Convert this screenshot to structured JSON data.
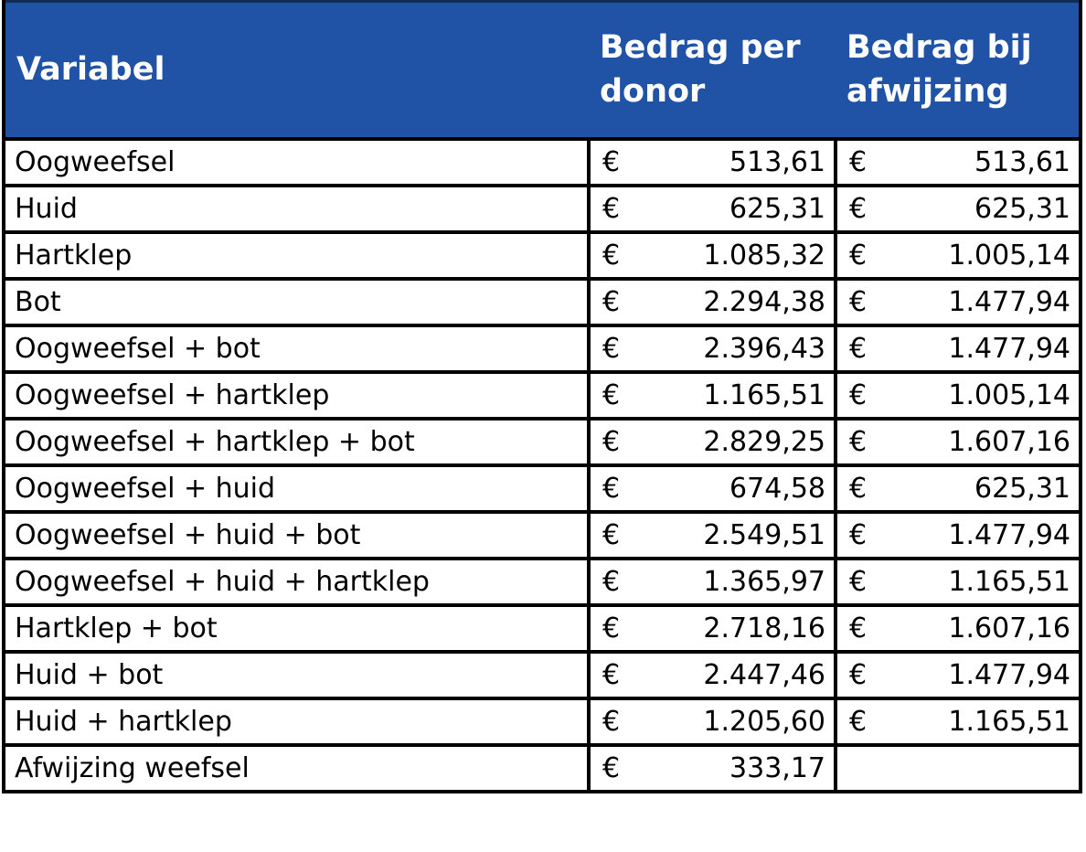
{
  "table": {
    "columns": [
      {
        "label": "Variabel"
      },
      {
        "label": "Bedrag per donor"
      },
      {
        "label": "Bedrag bij afwijzing"
      }
    ],
    "style": {
      "header_bg": "#2052A5",
      "header_text": "#FFFFFF",
      "border_color": "#000000",
      "body_text": "#000000"
    },
    "rows": [
      {
        "variable": "Oogweefsel",
        "per_donor_currency": "€",
        "per_donor": "513,61",
        "afwijzing_currency": "€",
        "afwijzing": "513,61"
      },
      {
        "variable": "Huid",
        "per_donor_currency": "€",
        "per_donor": "625,31",
        "afwijzing_currency": "€",
        "afwijzing": "625,31"
      },
      {
        "variable": "Hartklep",
        "per_donor_currency": "€",
        "per_donor": "1.085,32",
        "afwijzing_currency": "€",
        "afwijzing": "1.005,14"
      },
      {
        "variable": "Bot",
        "per_donor_currency": "€",
        "per_donor": "2.294,38",
        "afwijzing_currency": "€",
        "afwijzing": "1.477,94"
      },
      {
        "variable": "Oogweefsel + bot",
        "per_donor_currency": "€",
        "per_donor": "2.396,43",
        "afwijzing_currency": "€",
        "afwijzing": "1.477,94"
      },
      {
        "variable": "Oogweefsel + hartklep",
        "per_donor_currency": "€",
        "per_donor": "1.165,51",
        "afwijzing_currency": "€",
        "afwijzing": "1.005,14"
      },
      {
        "variable": "Oogweefsel + hartklep + bot",
        "per_donor_currency": "€",
        "per_donor": "2.829,25",
        "afwijzing_currency": "€",
        "afwijzing": "1.607,16"
      },
      {
        "variable": "Oogweefsel + huid",
        "per_donor_currency": "€",
        "per_donor": "674,58",
        "afwijzing_currency": "€",
        "afwijzing": "625,31"
      },
      {
        "variable": "Oogweefsel + huid + bot",
        "per_donor_currency": "€",
        "per_donor": "2.549,51",
        "afwijzing_currency": "€",
        "afwijzing": "1.477,94"
      },
      {
        "variable": "Oogweefsel + huid + hartklep",
        "per_donor_currency": "€",
        "per_donor": "1.365,97",
        "afwijzing_currency": "€",
        "afwijzing": "1.165,51"
      },
      {
        "variable": "Hartklep + bot",
        "per_donor_currency": "€",
        "per_donor": "2.718,16",
        "afwijzing_currency": "€",
        "afwijzing": "1.607,16"
      },
      {
        "variable": "Huid + bot",
        "per_donor_currency": "€",
        "per_donor": "2.447,46",
        "afwijzing_currency": "€",
        "afwijzing": "1.477,94"
      },
      {
        "variable": "Huid + hartklep",
        "per_donor_currency": "€",
        "per_donor": "1.205,60",
        "afwijzing_currency": "€",
        "afwijzing": "1.165,51"
      },
      {
        "variable": "Afwijzing weefsel",
        "per_donor_currency": "€",
        "per_donor": "333,17",
        "afwijzing_currency": "",
        "afwijzing": ""
      }
    ]
  }
}
